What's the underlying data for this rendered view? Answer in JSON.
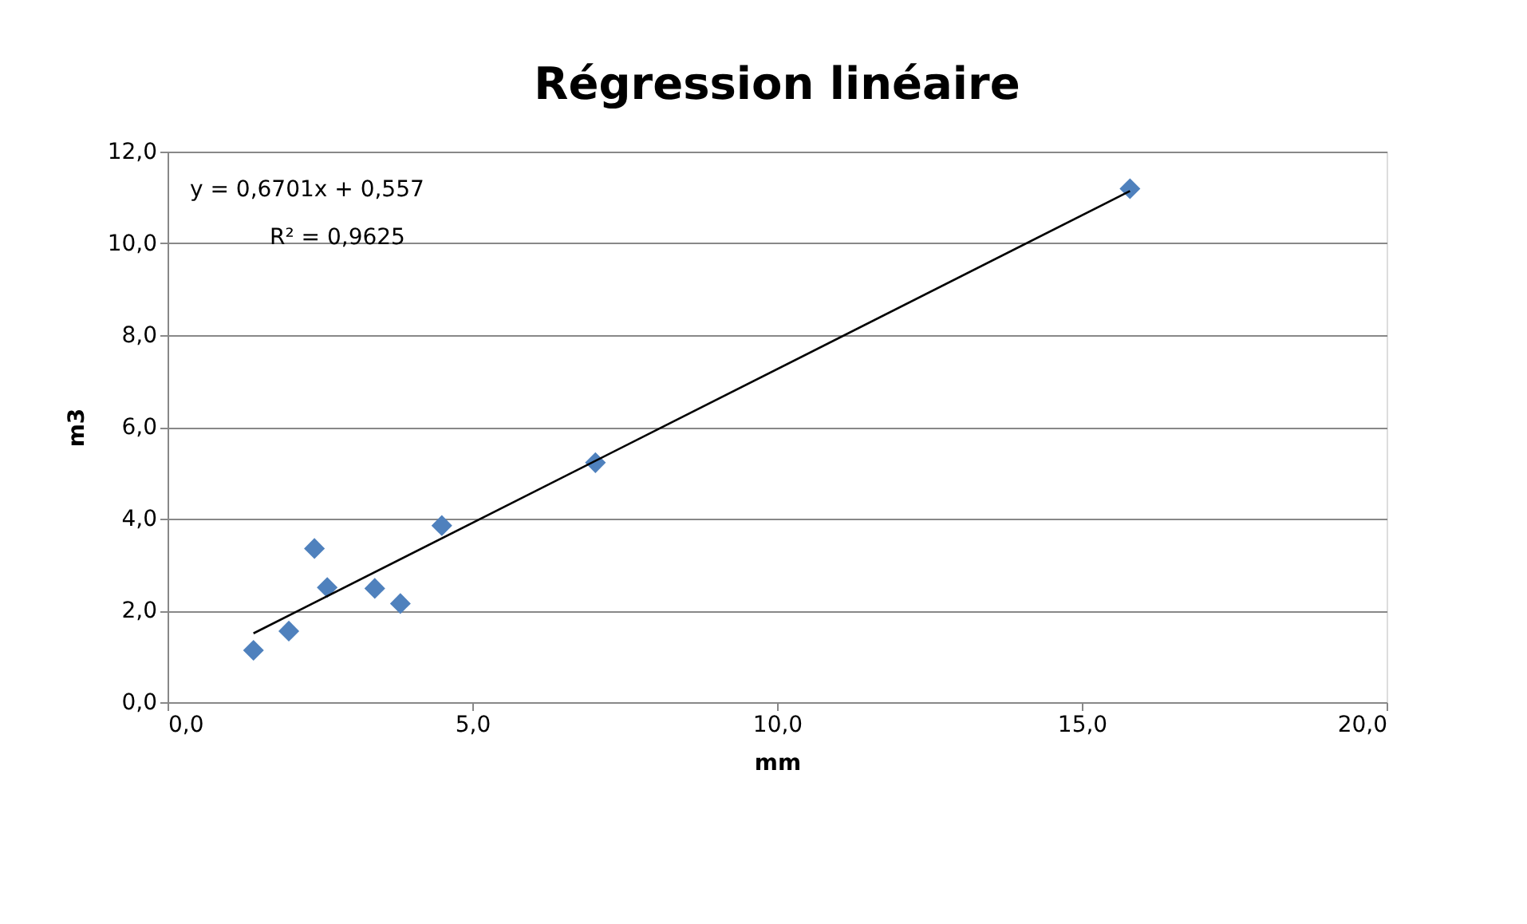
{
  "chart_data": {
    "type": "scatter",
    "title": "Régression linéaire",
    "xlabel": "mm",
    "ylabel": "m3",
    "annotations": [
      "y = 0,6701x + 0,557",
      "R² = 0,9625"
    ],
    "xlim": [
      0,
      20
    ],
    "ylim": [
      0,
      12
    ],
    "xticks": [
      {
        "value": 0,
        "label": "0,0"
      },
      {
        "value": 5,
        "label": "5,0"
      },
      {
        "value": 10,
        "label": "10,0"
      },
      {
        "value": 15,
        "label": "15,0"
      },
      {
        "value": 20,
        "label": "20,0"
      }
    ],
    "yticks": [
      {
        "value": 0,
        "label": "0,0"
      },
      {
        "value": 2,
        "label": "2,0"
      },
      {
        "value": 4,
        "label": "4,0"
      },
      {
        "value": 6,
        "label": "6,0"
      },
      {
        "value": 8,
        "label": "8,0"
      },
      {
        "value": 10,
        "label": "10,0"
      },
      {
        "value": 12,
        "label": "12,0"
      }
    ],
    "grid": "y",
    "marker": "diamond",
    "series": [
      {
        "color": "#4f81bd",
        "x": [
          1.41,
          1.99,
          2.41,
          2.62,
          3.4,
          3.82,
          4.5,
          7.02,
          15.79
        ],
        "values": [
          1.13,
          1.55,
          3.35,
          2.5,
          2.48,
          2.15,
          3.85,
          5.22,
          11.19
        ]
      },
      {
        "type": "line",
        "color": "#000000",
        "line_style": "solid",
        "marker": "none",
        "x": [
          1.41,
          15.79
        ],
        "values": [
          1.5,
          11.14
        ]
      }
    ]
  }
}
